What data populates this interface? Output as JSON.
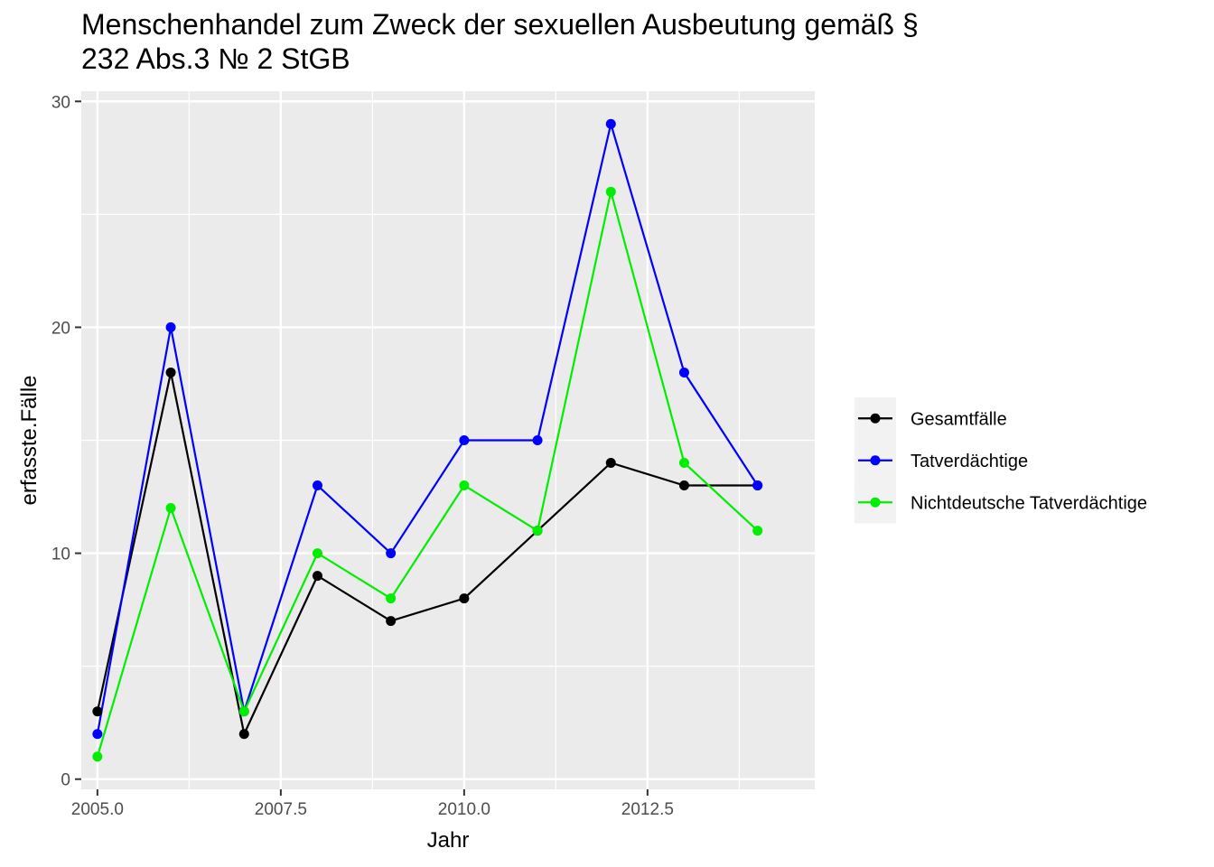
{
  "chart_data": {
    "type": "line",
    "title": [
      "Menschenhandel zum Zweck der sexuellen Ausbeutung gemäß §",
      "232 Abs.3 № 2 StGB"
    ],
    "xlabel": "Jahr",
    "ylabel": "erfasste.Fälle",
    "xlim": [
      2004.78,
      2014.78
    ],
    "ylim": [
      -0.45,
      30.45
    ],
    "x_ticks": [
      2005.0,
      2007.5,
      2010.0,
      2012.5
    ],
    "x_tick_labels": [
      "2005.0",
      "2007.5",
      "2010.0",
      "2012.5"
    ],
    "y_ticks": [
      0,
      10,
      20,
      30
    ],
    "y_tick_labels": [
      "0",
      "10",
      "20",
      "30"
    ],
    "grid": true,
    "legend_position": "right",
    "x": [
      2005,
      2006,
      2007,
      2008,
      2009,
      2010,
      2011,
      2012,
      2013,
      2014
    ],
    "series": [
      {
        "name": "Gesamtfälle",
        "color": "#000000",
        "values": [
          3,
          18,
          2,
          9,
          7,
          8,
          11,
          14,
          13,
          13
        ]
      },
      {
        "name": "Tatverdächtige",
        "color": "#0000ff",
        "values": [
          2,
          20,
          3,
          13,
          10,
          15,
          15,
          29,
          18,
          13
        ]
      },
      {
        "name": "Nichtdeutsche Tatverdächtige",
        "color": "#00ee00",
        "values": [
          1,
          12,
          3,
          10,
          8,
          13,
          11,
          26,
          14,
          11
        ]
      }
    ]
  }
}
